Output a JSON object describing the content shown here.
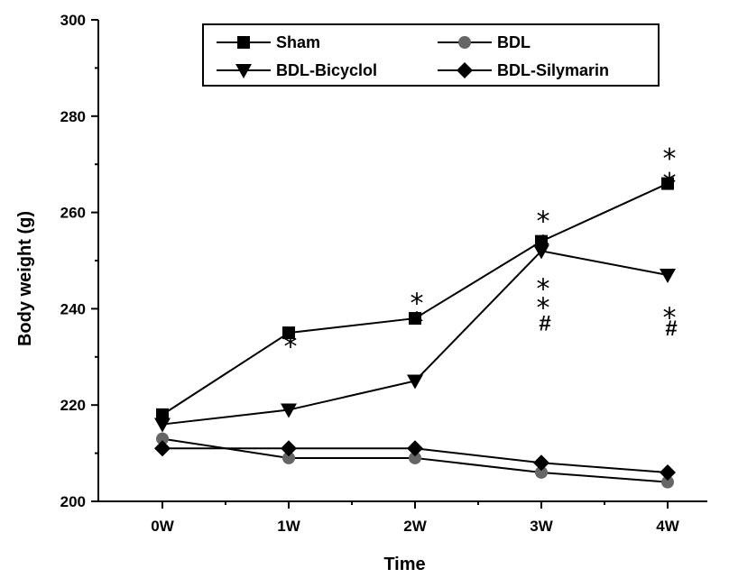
{
  "chart_data": {
    "type": "line",
    "xlabel": "Time",
    "ylabel": "Body weight (g)",
    "categories": [
      "0W",
      "1W",
      "2W",
      "3W",
      "4W"
    ],
    "ylim": [
      200,
      300
    ],
    "yticks": [
      200,
      220,
      240,
      260,
      280,
      300
    ],
    "grid": false,
    "legend_position": "top",
    "series": [
      {
        "name": "Sham",
        "marker": "square",
        "values": [
          218,
          235,
          238,
          254,
          266
        ]
      },
      {
        "name": "BDL",
        "marker": "circle",
        "color": "#666666",
        "values": [
          213,
          209,
          209,
          206,
          204
        ]
      },
      {
        "name": "BDL-Bicyclol",
        "marker": "triangle-down",
        "values": [
          216,
          219,
          225,
          252,
          247
        ]
      },
      {
        "name": "BDL-Silymarin",
        "marker": "diamond",
        "values": [
          211,
          211,
          211,
          208,
          206
        ]
      }
    ],
    "annotations": [
      {
        "category": "1W",
        "y": 234,
        "text": "*"
      },
      {
        "category": "2W",
        "y": 239,
        "text": "*"
      },
      {
        "category": "2W",
        "y": 243,
        "text": "*"
      },
      {
        "category": "3W",
        "y": 255,
        "text": "*"
      },
      {
        "category": "3W",
        "y": 260,
        "text": "*"
      },
      {
        "category": "3W",
        "y": 242,
        "text": "*"
      },
      {
        "category": "3W",
        "y": 246,
        "text": "*"
      },
      {
        "category": "3W",
        "y": 237,
        "text": "#"
      },
      {
        "category": "4W",
        "y": 268,
        "text": "*"
      },
      {
        "category": "4W",
        "y": 273,
        "text": "*"
      },
      {
        "category": "4W",
        "y": 240,
        "text": "*"
      },
      {
        "category": "4W",
        "y": 236,
        "text": "#"
      }
    ]
  }
}
